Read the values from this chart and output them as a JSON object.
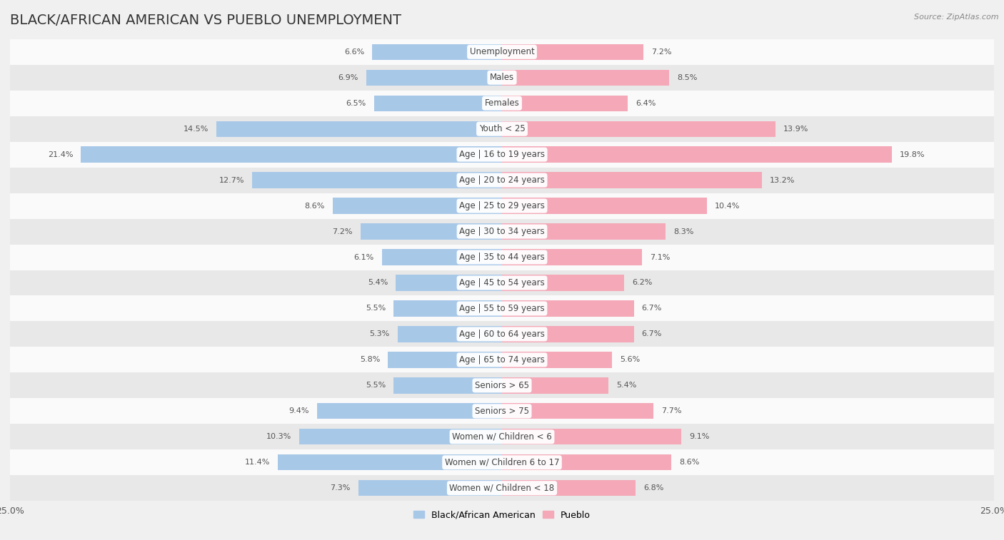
{
  "title": "BLACK/AFRICAN AMERICAN VS PUEBLO UNEMPLOYMENT",
  "source": "Source: ZipAtlas.com",
  "categories": [
    "Unemployment",
    "Males",
    "Females",
    "Youth < 25",
    "Age | 16 to 19 years",
    "Age | 20 to 24 years",
    "Age | 25 to 29 years",
    "Age | 30 to 34 years",
    "Age | 35 to 44 years",
    "Age | 45 to 54 years",
    "Age | 55 to 59 years",
    "Age | 60 to 64 years",
    "Age | 65 to 74 years",
    "Seniors > 65",
    "Seniors > 75",
    "Women w/ Children < 6",
    "Women w/ Children 6 to 17",
    "Women w/ Children < 18"
  ],
  "left_values": [
    6.6,
    6.9,
    6.5,
    14.5,
    21.4,
    12.7,
    8.6,
    7.2,
    6.1,
    5.4,
    5.5,
    5.3,
    5.8,
    5.5,
    9.4,
    10.3,
    11.4,
    7.3
  ],
  "right_values": [
    7.2,
    8.5,
    6.4,
    13.9,
    19.8,
    13.2,
    10.4,
    8.3,
    7.1,
    6.2,
    6.7,
    6.7,
    5.6,
    5.4,
    7.7,
    9.1,
    8.6,
    6.8
  ],
  "left_color": "#a8c8e8",
  "right_color": "#f4a8b8",
  "max_val": 25.0,
  "background_color": "#f0f0f0",
  "row_color_light": "#fafafa",
  "row_color_dark": "#e8e8e8",
  "title_fontsize": 14,
  "label_fontsize": 8.5,
  "value_fontsize": 8.0
}
